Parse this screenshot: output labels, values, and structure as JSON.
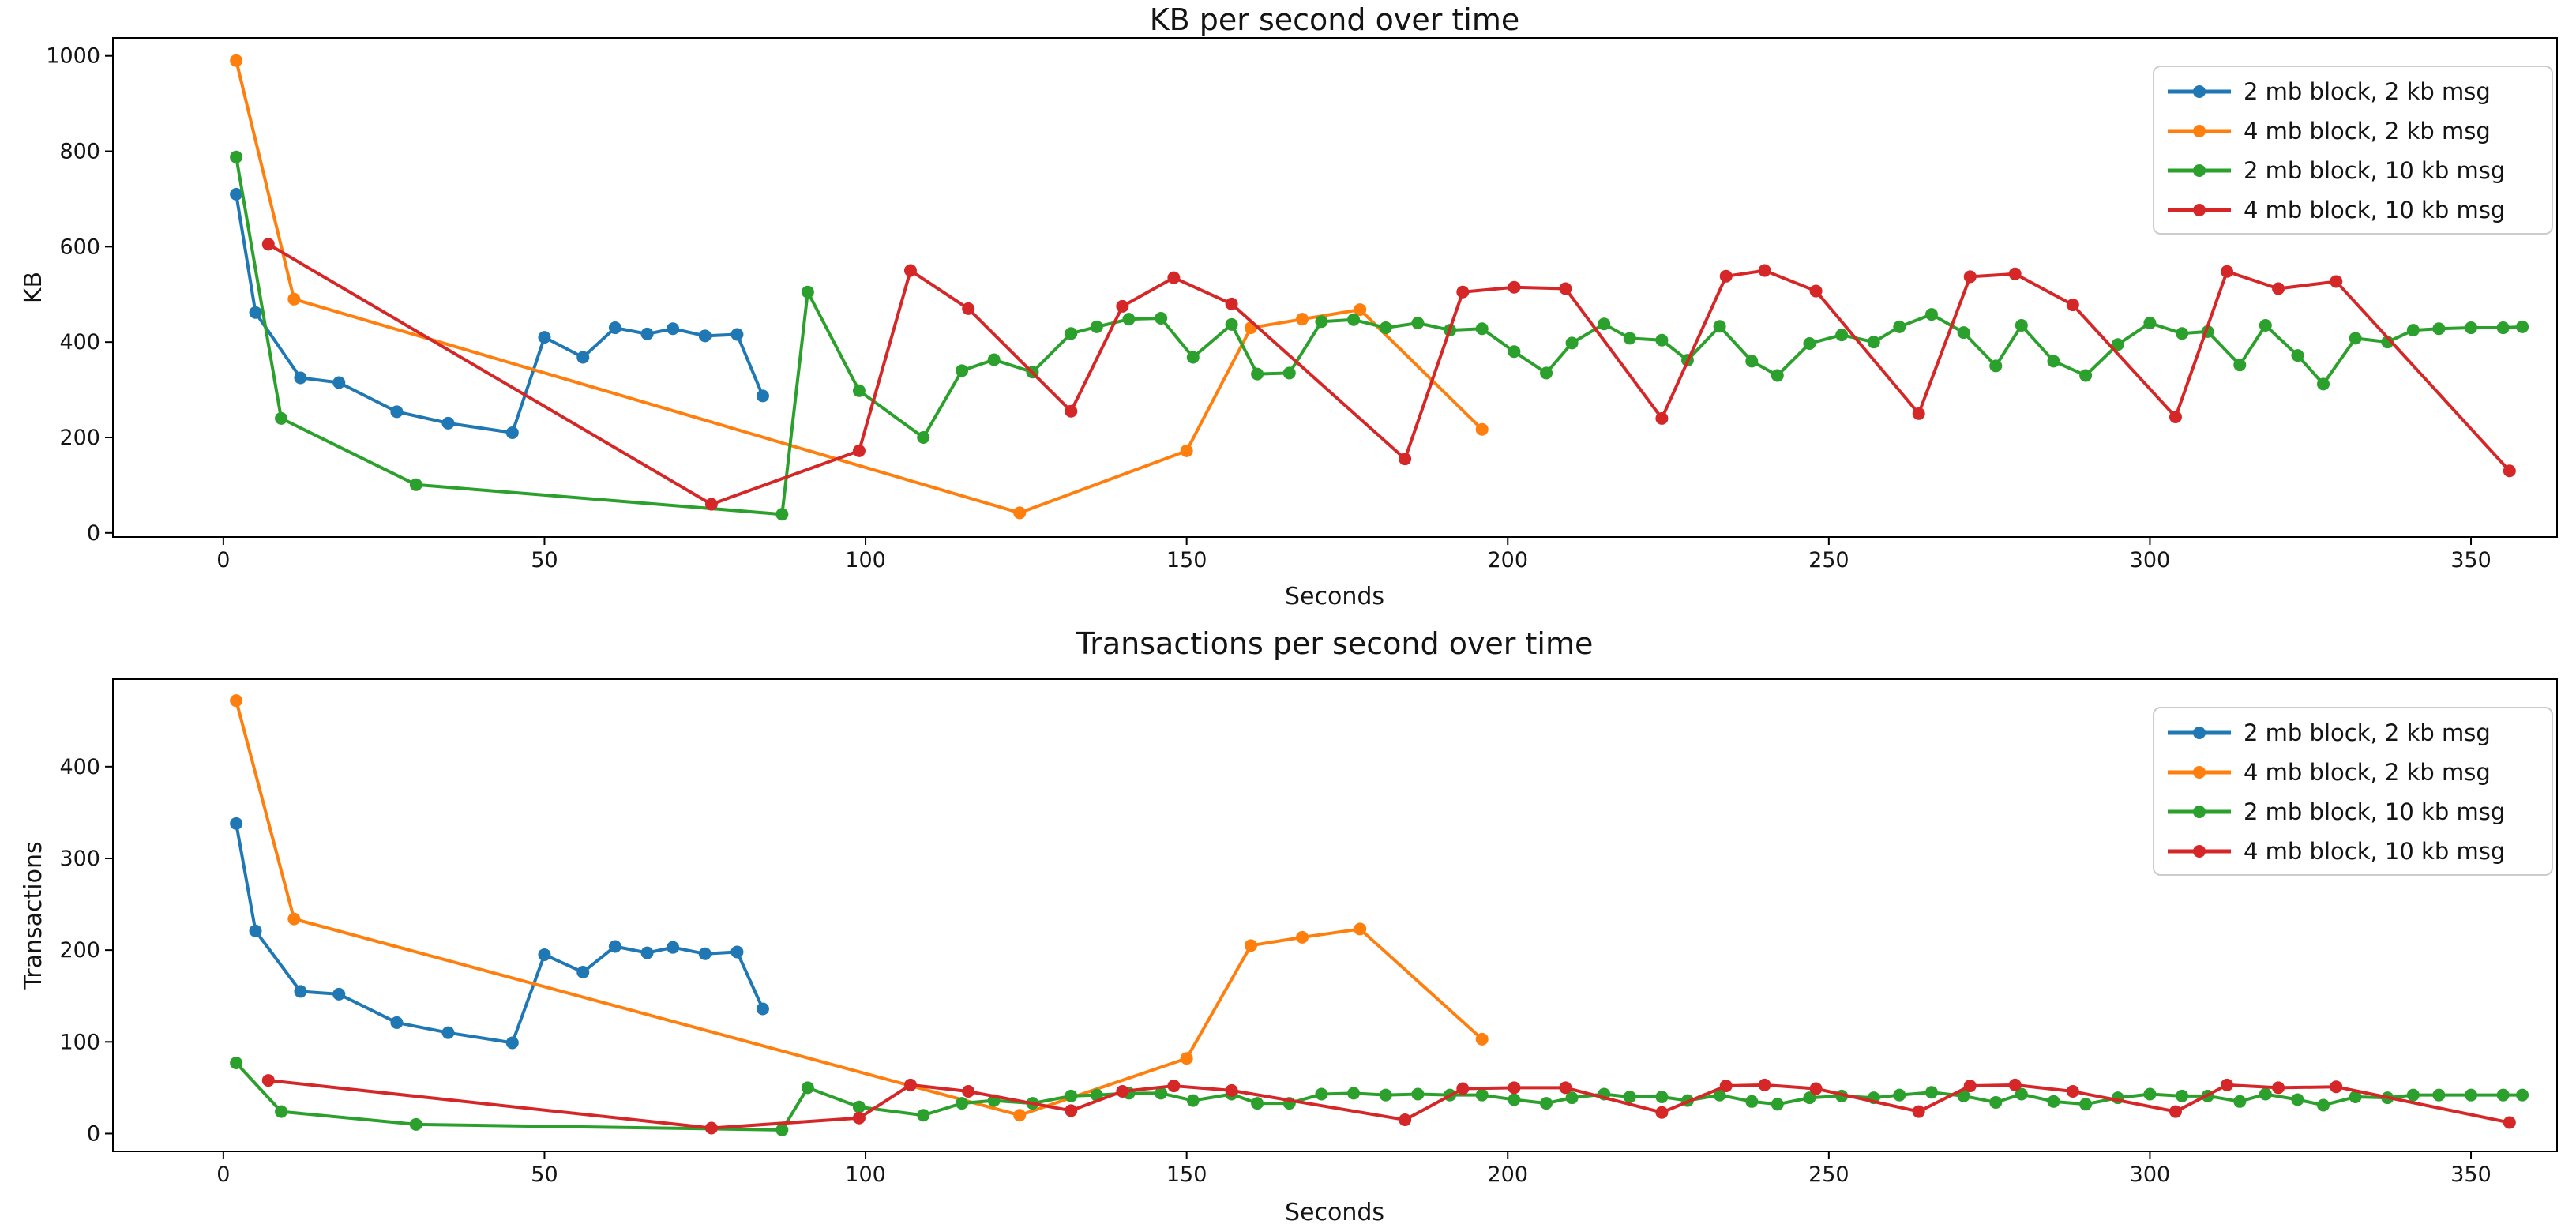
{
  "figure": {
    "background": "#ffffff"
  },
  "colors": {
    "series_blue": "#1f77b4",
    "series_orange": "#ff7f0e",
    "series_green": "#2ca02c",
    "series_red": "#d62728",
    "axis": "#000000",
    "text": "#141414",
    "legend_border": "#cccccc",
    "legend_background": "#ffffff"
  },
  "chart_data": [
    {
      "type": "line",
      "title": "KB per second over time",
      "xlabel": "Seconds",
      "ylabel": "KB",
      "x_ticks": [
        0,
        50,
        100,
        150,
        200,
        250,
        300,
        350
      ],
      "y_ticks": [
        0,
        200,
        400,
        600,
        800,
        1000
      ],
      "xlim": [
        -17.2,
        363.4
      ],
      "ylim": [
        -8.6,
        1037.6
      ],
      "grid": false,
      "legend_position": "upper right",
      "series": [
        {
          "name": "2 mb block, 2 kb msg",
          "color": "#1f77b4",
          "points": [
            [
              2,
              710
            ],
            [
              5,
              462
            ],
            [
              12,
              325
            ],
            [
              18,
              315
            ],
            [
              27,
              254
            ],
            [
              35,
              230
            ],
            [
              45,
              210
            ],
            [
              50,
              410
            ],
            [
              56,
              368
            ],
            [
              61,
              430
            ],
            [
              66,
              417
            ],
            [
              70,
              428
            ],
            [
              75,
              413
            ],
            [
              80,
              416
            ],
            [
              84,
              287
            ]
          ]
        },
        {
          "name": "4 mb block, 2 kb msg",
          "color": "#ff7f0e",
          "points": [
            [
              2,
              990
            ],
            [
              11,
              490
            ],
            [
              124,
              42
            ],
            [
              150,
              172
            ],
            [
              160,
              430
            ],
            [
              168,
              448
            ],
            [
              177,
              468
            ],
            [
              196,
              217
            ]
          ]
        },
        {
          "name": "2 mb block, 10 kb msg",
          "color": "#2ca02c",
          "points": [
            [
              2,
              788
            ],
            [
              9,
              240
            ],
            [
              30,
              101
            ],
            [
              87,
              39
            ],
            [
              91,
              505
            ],
            [
              99,
              298
            ],
            [
              109,
              200
            ],
            [
              115,
              340
            ],
            [
              120,
              363
            ],
            [
              126,
              337
            ],
            [
              132,
              418
            ],
            [
              136,
              432
            ],
            [
              141,
              448
            ],
            [
              146,
              450
            ],
            [
              151,
              368
            ],
            [
              157,
              437
            ],
            [
              161,
              333
            ],
            [
              166,
              335
            ],
            [
              171,
              443
            ],
            [
              176,
              447
            ],
            [
              181,
              430
            ],
            [
              186,
              440
            ],
            [
              191,
              425
            ],
            [
              196,
              428
            ],
            [
              201,
              380
            ],
            [
              206,
              335
            ],
            [
              210,
              398
            ],
            [
              215,
              438
            ],
            [
              219,
              408
            ],
            [
              224,
              404
            ],
            [
              228,
              362
            ],
            [
              233,
              433
            ],
            [
              238,
              360
            ],
            [
              242,
              330
            ],
            [
              247,
              397
            ],
            [
              252,
              415
            ],
            [
              257,
              400
            ],
            [
              261,
              432
            ],
            [
              266,
              458
            ],
            [
              271,
              420
            ],
            [
              276,
              350
            ],
            [
              280,
              435
            ],
            [
              285,
              360
            ],
            [
              290,
              330
            ],
            [
              295,
              395
            ],
            [
              300,
              440
            ],
            [
              305,
              418
            ],
            [
              309,
              422
            ],
            [
              314,
              352
            ],
            [
              318,
              435
            ],
            [
              323,
              372
            ],
            [
              327,
              312
            ],
            [
              332,
              408
            ],
            [
              337,
              400
            ],
            [
              341,
              425
            ],
            [
              345,
              428
            ],
            [
              350,
              430
            ],
            [
              355,
              430
            ],
            [
              358,
              432
            ]
          ]
        },
        {
          "name": "4 mb block, 10 kb msg",
          "color": "#d62728",
          "points": [
            [
              7,
              605
            ],
            [
              76,
              60
            ],
            [
              99,
              172
            ],
            [
              107,
              550
            ],
            [
              116,
              470
            ],
            [
              132,
              255
            ],
            [
              140,
              475
            ],
            [
              148,
              535
            ],
            [
              157,
              480
            ],
            [
              184,
              155
            ],
            [
              193,
              505
            ],
            [
              201,
              515
            ],
            [
              209,
              512
            ],
            [
              224,
              240
            ],
            [
              234,
              538
            ],
            [
              240,
              550
            ],
            [
              248,
              507
            ],
            [
              264,
              250
            ],
            [
              272,
              537
            ],
            [
              279,
              543
            ],
            [
              288,
              478
            ],
            [
              304,
              243
            ],
            [
              312,
              548
            ],
            [
              320,
              512
            ],
            [
              329,
              527
            ],
            [
              356,
              130
            ]
          ]
        }
      ]
    },
    {
      "type": "line",
      "title": "Transactions per second over time",
      "xlabel": "Seconds",
      "ylabel": "Transactions",
      "x_ticks": [
        0,
        50,
        100,
        150,
        200,
        250,
        300,
        350
      ],
      "y_ticks": [
        0,
        100,
        200,
        300,
        400
      ],
      "xlim": [
        -17.2,
        363.4
      ],
      "ylim": [
        -19.4,
        495.4
      ],
      "grid": false,
      "legend_position": "upper right",
      "series": [
        {
          "name": "2 mb block, 2 kb msg",
          "color": "#1f77b4",
          "points": [
            [
              2,
              338
            ],
            [
              5,
              221
            ],
            [
              12,
              155
            ],
            [
              18,
              152
            ],
            [
              27,
              121
            ],
            [
              35,
              110
            ],
            [
              45,
              99
            ],
            [
              50,
              195
            ],
            [
              56,
              176
            ],
            [
              61,
              204
            ],
            [
              66,
              197
            ],
            [
              70,
              203
            ],
            [
              75,
              196
            ],
            [
              80,
              198
            ],
            [
              84,
              136
            ]
          ]
        },
        {
          "name": "4 mb block, 2 kb msg",
          "color": "#ff7f0e",
          "points": [
            [
              2,
              472
            ],
            [
              11,
              234
            ],
            [
              124,
              20
            ],
            [
              150,
              82
            ],
            [
              160,
              205
            ],
            [
              168,
              214
            ],
            [
              177,
              223
            ],
            [
              196,
              103
            ]
          ]
        },
        {
          "name": "2 mb block, 10 kb msg",
          "color": "#2ca02c",
          "points": [
            [
              2,
              77
            ],
            [
              9,
              24
            ],
            [
              30,
              10
            ],
            [
              87,
              4
            ],
            [
              91,
              50
            ],
            [
              99,
              29
            ],
            [
              109,
              20
            ],
            [
              115,
              33
            ],
            [
              120,
              36
            ],
            [
              126,
              33
            ],
            [
              132,
              41
            ],
            [
              136,
              42
            ],
            [
              141,
              44
            ],
            [
              146,
              44
            ],
            [
              151,
              36
            ],
            [
              157,
              43
            ],
            [
              161,
              33
            ],
            [
              166,
              33
            ],
            [
              171,
              43
            ],
            [
              176,
              44
            ],
            [
              181,
              42
            ],
            [
              186,
              43
            ],
            [
              191,
              42
            ],
            [
              196,
              42
            ],
            [
              201,
              37
            ],
            [
              206,
              33
            ],
            [
              210,
              39
            ],
            [
              215,
              43
            ],
            [
              219,
              40
            ],
            [
              224,
              40
            ],
            [
              228,
              36
            ],
            [
              233,
              42
            ],
            [
              238,
              35
            ],
            [
              242,
              32
            ],
            [
              247,
              39
            ],
            [
              252,
              41
            ],
            [
              257,
              39
            ],
            [
              261,
              42
            ],
            [
              266,
              45
            ],
            [
              271,
              41
            ],
            [
              276,
              34
            ],
            [
              280,
              43
            ],
            [
              285,
              35
            ],
            [
              290,
              32
            ],
            [
              295,
              39
            ],
            [
              300,
              43
            ],
            [
              305,
              41
            ],
            [
              309,
              41
            ],
            [
              314,
              35
            ],
            [
              318,
              43
            ],
            [
              323,
              37
            ],
            [
              327,
              31
            ],
            [
              332,
              40
            ],
            [
              337,
              39
            ],
            [
              341,
              42
            ],
            [
              345,
              42
            ],
            [
              350,
              42
            ],
            [
              355,
              42
            ],
            [
              358,
              42
            ]
          ]
        },
        {
          "name": "4 mb block, 10 kb msg",
          "color": "#d62728",
          "points": [
            [
              7,
              58
            ],
            [
              76,
              6
            ],
            [
              99,
              17
            ],
            [
              107,
              53
            ],
            [
              116,
              46
            ],
            [
              132,
              25
            ],
            [
              140,
              46
            ],
            [
              148,
              52
            ],
            [
              157,
              47
            ],
            [
              184,
              15
            ],
            [
              193,
              49
            ],
            [
              201,
              50
            ],
            [
              209,
              50
            ],
            [
              224,
              23
            ],
            [
              234,
              52
            ],
            [
              240,
              53
            ],
            [
              248,
              49
            ],
            [
              264,
              24
            ],
            [
              272,
              52
            ],
            [
              279,
              53
            ],
            [
              288,
              46
            ],
            [
              304,
              24
            ],
            [
              312,
              53
            ],
            [
              320,
              50
            ],
            [
              329,
              51
            ],
            [
              356,
              12
            ]
          ]
        }
      ]
    }
  ]
}
